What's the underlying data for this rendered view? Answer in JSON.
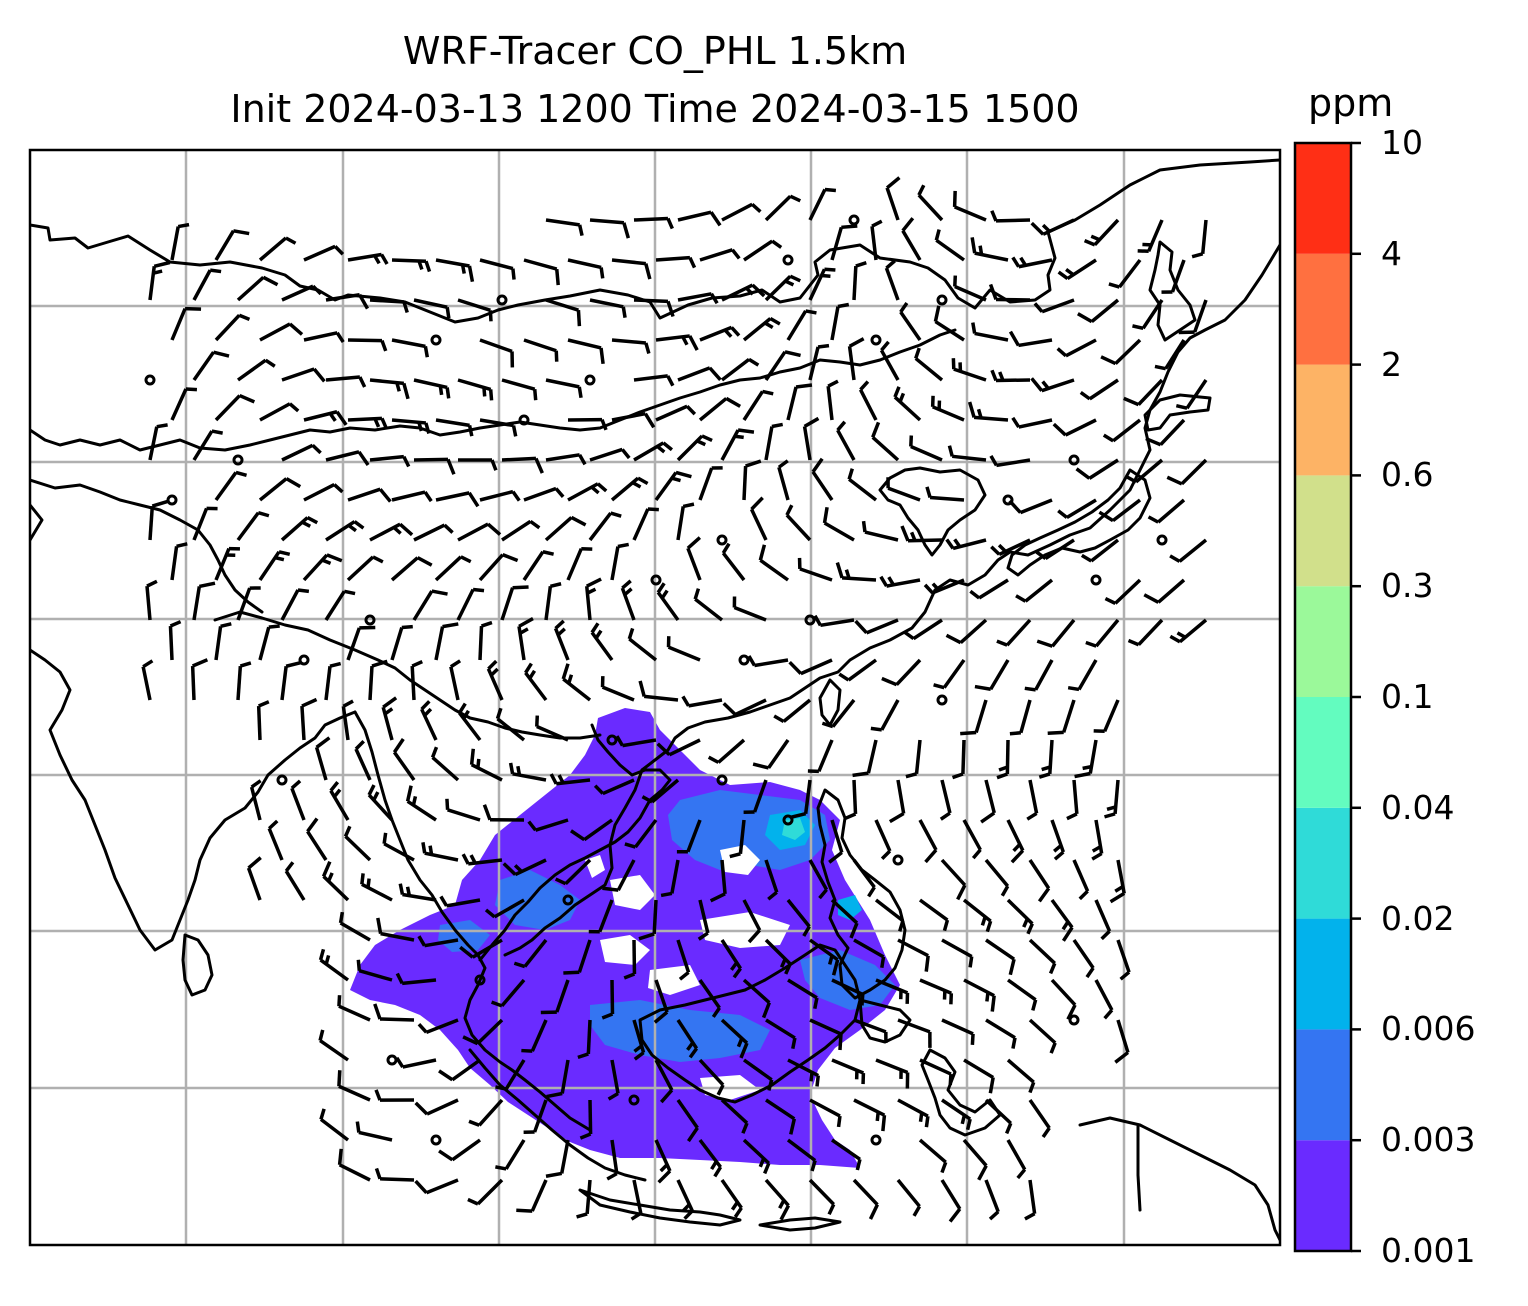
{
  "title": {
    "line1": "WRF-Tracer CO_PHL 1.5km",
    "line2": "Init 2024-03-13 1200 Time 2024-03-15 1500"
  },
  "colorbar": {
    "unit": "ppm",
    "levels": [
      "0.001",
      "0.003",
      "0.006",
      "0.02",
      "0.04",
      "0.1",
      "0.3",
      "0.6",
      "2",
      "4",
      "10"
    ],
    "colors": [
      "#6a2bff",
      "#3475f2",
      "#02b2ec",
      "#2fdbd8",
      "#63fcbf",
      "#9bf99a",
      "#d1e08b",
      "#fdb365",
      "#ff7040",
      "#ff2f15"
    ]
  },
  "map": {
    "coastline_color": "#000000",
    "grid_color": "#b0b0b0",
    "grid": true
  }
}
